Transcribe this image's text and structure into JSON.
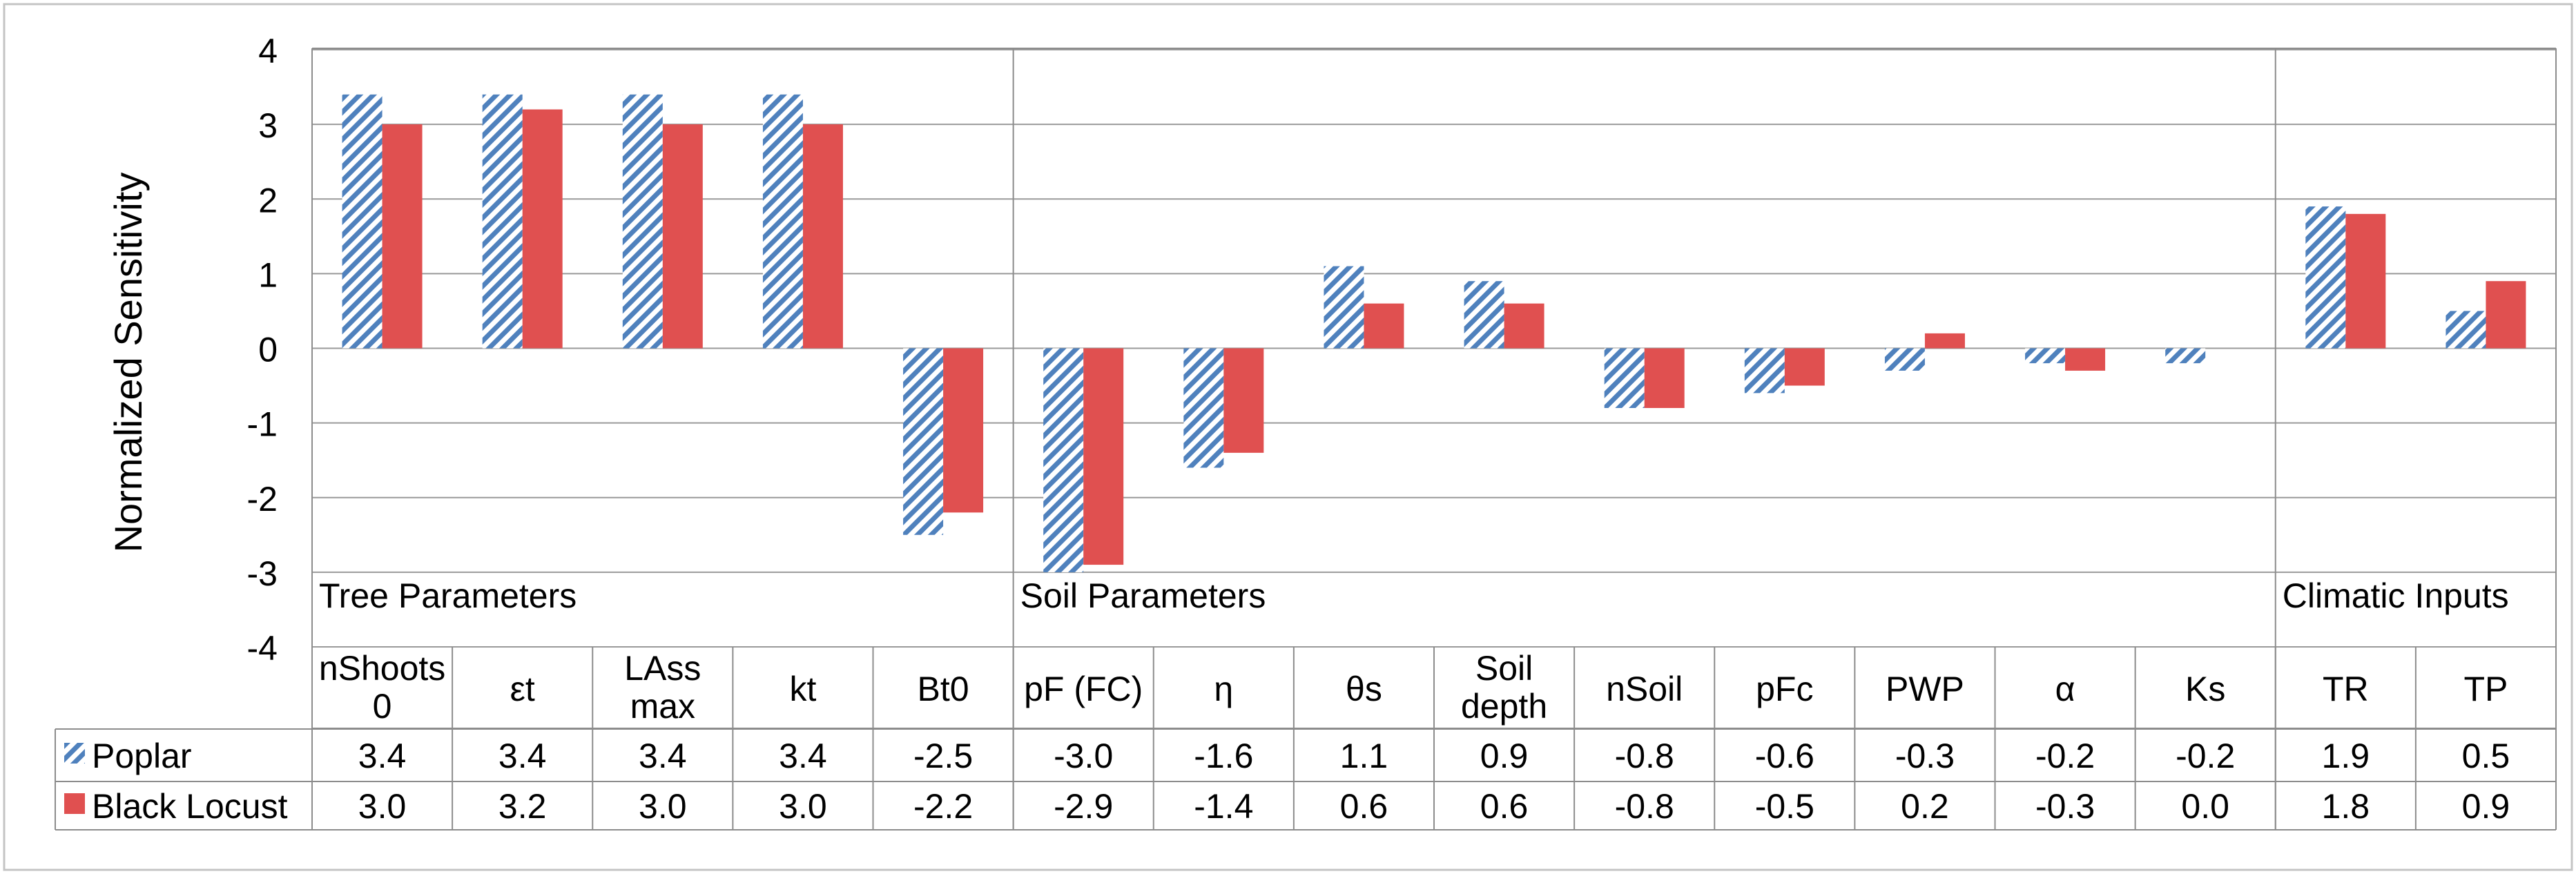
{
  "chart_data": {
    "type": "bar",
    "title": "",
    "xlabel": "",
    "ylabel": "Normalized Sensitivity",
    "ylim": [
      -4,
      4
    ],
    "yticks": [
      "4",
      "3",
      "2",
      "1",
      "0",
      "-1",
      "-2",
      "-3",
      "-4"
    ],
    "categories": [
      "nShoots 0",
      "εt",
      "LAss max",
      "kt",
      "Bt0",
      "pF (FC)",
      "η",
      "θs",
      "Soil depth",
      "nSoil",
      "pFc",
      "PWP",
      "α",
      "Ks",
      "TR",
      "TP"
    ],
    "category_lines": [
      [
        "nShoots",
        "0"
      ],
      [
        "εt"
      ],
      [
        "LAss",
        "max"
      ],
      [
        "kt"
      ],
      [
        "Bt0"
      ],
      [
        "pF (FC)"
      ],
      [
        "η"
      ],
      [
        "θs"
      ],
      [
        "Soil",
        "depth"
      ],
      [
        "nSoil"
      ],
      [
        "pFc"
      ],
      [
        "PWP"
      ],
      [
        "α"
      ],
      [
        "Ks"
      ],
      [
        "TR"
      ],
      [
        "TP"
      ]
    ],
    "groups": [
      {
        "label": "Tree Parameters",
        "count": 5
      },
      {
        "label": "Soil Parameters",
        "count": 9
      },
      {
        "label": "Climatic Inputs",
        "count": 2
      }
    ],
    "series": [
      {
        "name": "Poplar",
        "color": "#4f81bd",
        "pattern": "diagonal-hatch",
        "values": [
          3.4,
          3.4,
          3.4,
          3.4,
          -2.5,
          -3.0,
          -1.6,
          1.1,
          0.9,
          -0.8,
          -0.6,
          -0.3,
          -0.2,
          -0.2,
          1.9,
          0.5
        ],
        "labels": [
          "3.4",
          "3.4",
          "3.4",
          "3.4",
          "-2.5",
          "-3.0",
          "-1.6",
          "1.1",
          "0.9",
          "-0.8",
          "-0.6",
          "-0.3",
          "-0.2",
          "-0.2",
          "1.9",
          "0.5"
        ]
      },
      {
        "name": "Black Locust",
        "color": "#e05050",
        "pattern": "solid",
        "values": [
          3.0,
          3.2,
          3.0,
          3.0,
          -2.2,
          -2.9,
          -1.4,
          0.6,
          0.6,
          -0.8,
          -0.5,
          0.2,
          -0.3,
          0.0,
          1.8,
          0.9
        ],
        "labels": [
          "3.0",
          "3.2",
          "3.0",
          "3.0",
          "-2.2",
          "-2.9",
          "-1.4",
          "0.6",
          "0.6",
          "-0.8",
          "-0.5",
          "0.2",
          "-0.3",
          "0.0",
          "1.8",
          "0.9"
        ]
      }
    ],
    "grid": true,
    "legend": "data-table"
  },
  "colors": {
    "grid": "#9a9a9a",
    "frame": "#8c8c8c",
    "poplar": "#4f81bd",
    "black_locust": "#e05050"
  }
}
